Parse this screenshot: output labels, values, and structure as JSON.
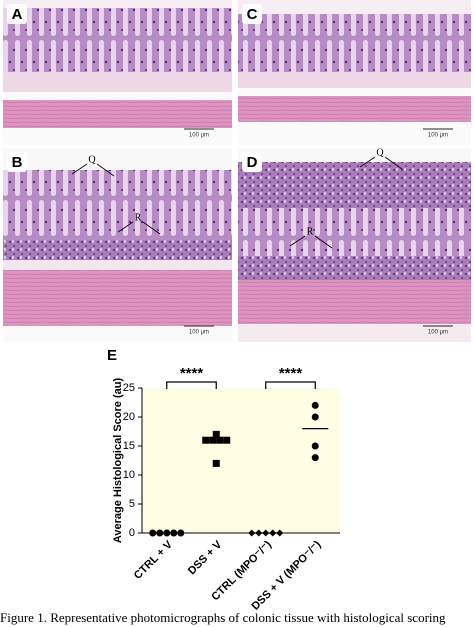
{
  "panels": [
    {
      "label": "A",
      "scale_bar": "100 μm",
      "annotations": []
    },
    {
      "label": "C",
      "scale_bar": "100 μm",
      "annotations": []
    },
    {
      "label": "B",
      "scale_bar": "100 μm",
      "annotations": [
        "Q",
        "R"
      ]
    },
    {
      "label": "D",
      "scale_bar": "100 μm",
      "annotations": [
        "Q",
        "R"
      ]
    }
  ],
  "chart_data": {
    "type": "dot",
    "panel_label": "E",
    "y_label": "Average Histological Score (au)",
    "categories": [
      "CTRL + V",
      "DSS + V",
      "CTRL (MPO⁻/⁻)",
      "DSS + V (MPO⁻/⁻)"
    ],
    "points": [
      [
        0,
        0,
        0,
        0,
        0
      ],
      [
        17,
        16,
        16,
        16,
        16,
        12
      ],
      [
        0,
        0,
        0,
        0,
        0
      ],
      [
        22,
        20,
        15,
        13
      ]
    ],
    "markers": [
      "circle",
      "square",
      "diamond",
      "circle"
    ],
    "means": [
      0,
      16,
      0,
      18
    ],
    "ylim": [
      0,
      25
    ],
    "yticks": [
      0,
      5,
      10,
      15,
      20,
      25
    ],
    "background": "#fffde3",
    "color": "#000000",
    "significance": [
      {
        "text": "****",
        "from": 0,
        "to": 1
      },
      {
        "text": "****",
        "from": 2,
        "to": 3
      }
    ]
  },
  "caption": "Figure 1. Representative photomicrographs of colonic tissue with histological scoring"
}
